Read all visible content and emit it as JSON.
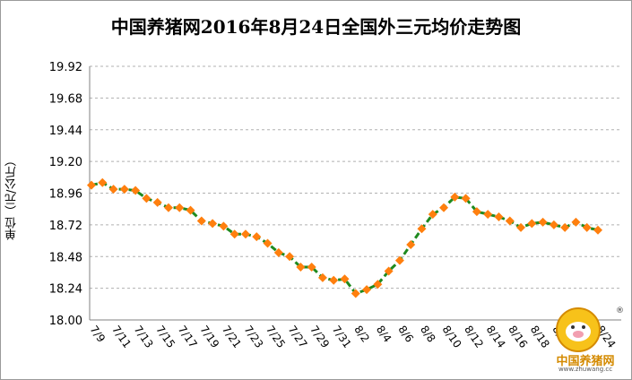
{
  "chart_data": {
    "type": "line",
    "title": "中国养猪网2016年8月24日全国外三元均价走势图",
    "ylabel": "单位（元/公斤）",
    "ylim": [
      18.0,
      19.92
    ],
    "yticks": [
      "19.92",
      "19.68",
      "19.44",
      "19.20",
      "18.96",
      "18.72",
      "18.48",
      "18.24",
      "18.00"
    ],
    "xtick_labels": [
      "7/9",
      "7/11",
      "7/13",
      "7/15",
      "7/17",
      "7/19",
      "7/21",
      "7/23",
      "7/25",
      "7/27",
      "7/29",
      "7/31",
      "8/2",
      "8/4",
      "8/6",
      "8/8",
      "8/10",
      "8/12",
      "8/14",
      "8/16",
      "8/18",
      "8/20",
      "8/22",
      "8/24"
    ],
    "grid": true,
    "legend": "none",
    "colors": {
      "line": "#1f8a1f",
      "marker": "#ff7f0e",
      "grid": "#b0b0b0"
    },
    "series": [
      {
        "x": [
          "7/9",
          "7/10",
          "7/11",
          "7/12",
          "7/13",
          "7/14",
          "7/15",
          "7/16",
          "7/17",
          "7/18",
          "7/19",
          "7/20",
          "7/21",
          "7/22",
          "7/23",
          "7/24",
          "7/25",
          "7/26",
          "7/27",
          "7/28",
          "7/29",
          "7/30",
          "7/31",
          "8/1",
          "8/2",
          "8/3",
          "8/4",
          "8/5",
          "8/6",
          "8/7",
          "8/8",
          "8/9",
          "8/10",
          "8/11",
          "8/12",
          "8/13",
          "8/14",
          "8/15",
          "8/16",
          "8/17",
          "8/18",
          "8/19",
          "8/20",
          "8/21",
          "8/22",
          "8/23",
          "8/24"
        ],
        "values": [
          19.02,
          19.04,
          18.99,
          18.99,
          18.98,
          18.92,
          18.89,
          18.85,
          18.85,
          18.83,
          18.75,
          18.73,
          18.71,
          18.65,
          18.65,
          18.63,
          18.58,
          18.51,
          18.48,
          18.4,
          18.4,
          18.32,
          18.3,
          18.31,
          18.2,
          18.23,
          18.27,
          18.37,
          18.45,
          18.57,
          18.69,
          18.8,
          18.85,
          18.93,
          18.92,
          18.82,
          18.8,
          18.78,
          18.75,
          18.7,
          18.73,
          18.74,
          18.72,
          18.7,
          18.74,
          18.7,
          18.68
        ]
      }
    ]
  },
  "logo": {
    "brand": "中国养猪网",
    "url": "www.zhuwang.cc",
    "reg": "®"
  }
}
